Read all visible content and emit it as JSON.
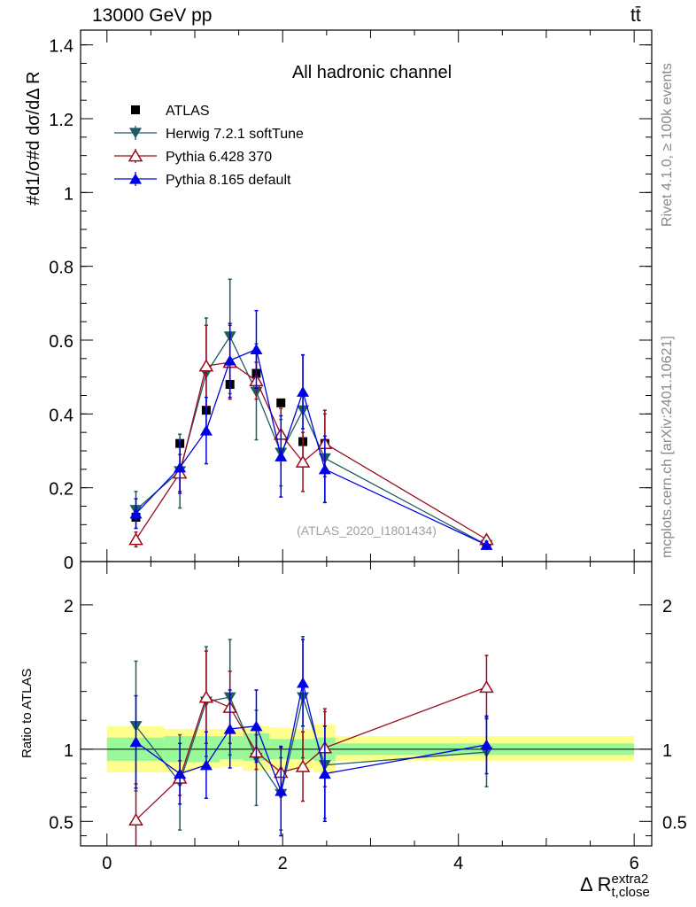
{
  "header": {
    "left": "13000 GeV pp",
    "right": "tt̄"
  },
  "side_text": {
    "rivet": "Rivet 4.1.0, ≥ 100k events",
    "mcplots": "mcplots.cern.ch [arXiv:2401.10621]"
  },
  "watermark": "(ATLAS_2020_I1801434)",
  "ratio_ylabel": "Ratio to ATLAS",
  "xlabel": {
    "main": "Δ R",
    "sup": "extra2",
    "sub": "t,close"
  },
  "colors": {
    "ATLAS": "#000000",
    "Herwig": "#1e5b63",
    "Pythia6": "#990b1e",
    "Pythia8": "#0000e6",
    "band_inner": "#99f899",
    "band_outer": "#fefe8c"
  },
  "chart_data": [
    {
      "type": "scatter",
      "title": "All hadronic channel",
      "ylabel": "#d1/σ#d dσ/dΔ R",
      "xlim": [
        -0.3,
        6.2
      ],
      "ylim": [
        0,
        1.44
      ],
      "yticks": [
        0,
        0.2,
        0.4,
        0.6,
        0.8,
        1,
        1.2,
        1.4
      ],
      "yticklabels": [
        "0",
        "0.2",
        "0.4",
        "0.6",
        "0.8",
        "1",
        "1.2",
        "1.4"
      ],
      "legend": [
        "ATLAS",
        "Herwig 7.2.1 softTune",
        "Pythia 6.428 370",
        "Pythia 8.165 default"
      ],
      "series": [
        {
          "name": "ATLAS",
          "marker": "square",
          "x": [
            0.33,
            0.83,
            1.13,
            1.4,
            1.7,
            1.98,
            2.23,
            2.48,
            4.32
          ],
          "y": [
            0.12,
            0.32,
            0.41,
            0.48,
            0.51,
            0.43,
            0.325,
            0.32,
            0.045
          ],
          "err": [
            0,
            0,
            0,
            0,
            0,
            0,
            0,
            0,
            0
          ]
        },
        {
          "name": "Herwig 7.2.1 softTune",
          "marker": "tri-down",
          "x": [
            0.33,
            0.83,
            1.13,
            1.4,
            1.7,
            1.98,
            2.23,
            2.48,
            4.32
          ],
          "y": [
            0.14,
            0.245,
            0.51,
            0.61,
            0.46,
            0.295,
            0.41,
            0.28,
            0.045
          ],
          "err": [
            0.05,
            0.1,
            0.15,
            0.155,
            0.13,
            0.09,
            0.15,
            0.12,
            0.01
          ]
        },
        {
          "name": "Pythia 6.428 370",
          "marker": "tri-up-open",
          "x": [
            0.33,
            0.83,
            1.13,
            1.4,
            1.7,
            1.98,
            2.23,
            2.48,
            4.32
          ],
          "y": [
            0.06,
            0.24,
            0.53,
            0.54,
            0.49,
            0.345,
            0.27,
            0.32,
            0.06
          ],
          "err": [
            0.02,
            0.05,
            0.11,
            0.1,
            0.05,
            0.07,
            0.08,
            0.09,
            0.01
          ]
        },
        {
          "name": "Pythia 8.165 default",
          "marker": "tri-up",
          "x": [
            0.33,
            0.83,
            1.13,
            1.4,
            1.7,
            1.98,
            2.23,
            2.48,
            4.32
          ],
          "y": [
            0.13,
            0.255,
            0.355,
            0.545,
            0.575,
            0.285,
            0.46,
            0.25,
            0.045
          ],
          "err": [
            0.04,
            0.07,
            0.09,
            0.1,
            0.105,
            0.11,
            0.1,
            0.09,
            0.01
          ]
        }
      ]
    },
    {
      "type": "scatter",
      "title": "Ratio to ATLAS",
      "ylabel": "Ratio to ATLAS",
      "xlim": [
        -0.3,
        6.2
      ],
      "ylim": [
        0.33,
        2.3
      ],
      "yticks": [
        0.5,
        1,
        2
      ],
      "yticklabels": [
        "0.5",
        "1",
        "2"
      ],
      "xticks": [
        0,
        2,
        4,
        6
      ],
      "xticklabels": [
        "0",
        "2",
        "4",
        "6"
      ],
      "band_edges": [
        0,
        0.65,
        1.0,
        1.28,
        1.55,
        1.85,
        2.1,
        2.35,
        2.6,
        6.0
      ],
      "band_inner": [
        [
          0.92,
          1.08
        ],
        [
          0.91,
          1.09
        ],
        [
          0.91,
          1.09
        ],
        [
          0.93,
          1.09
        ],
        [
          0.92,
          1.11
        ],
        [
          0.93,
          1.07
        ],
        [
          0.93,
          1.07
        ],
        [
          0.92,
          1.08
        ],
        [
          0.96,
          1.04
        ]
      ],
      "band_outer": [
        [
          0.84,
          1.16
        ],
        [
          0.84,
          1.14
        ],
        [
          0.87,
          1.14
        ],
        [
          0.88,
          1.14
        ],
        [
          0.85,
          1.16
        ],
        [
          0.85,
          1.15
        ],
        [
          0.86,
          1.14
        ],
        [
          0.84,
          1.17
        ],
        [
          0.92,
          1.09
        ]
      ],
      "series": [
        {
          "name": "Herwig 7.2.1 softTune",
          "marker": "tri-down",
          "x": [
            0.33,
            0.83,
            1.13,
            1.4,
            1.7,
            1.98,
            2.23,
            2.48,
            4.32
          ],
          "y": [
            1.16,
            0.77,
            1.33,
            1.36,
            0.94,
            0.69,
            1.36,
            0.89,
            0.98
          ],
          "err": [
            0.45,
            0.33,
            0.38,
            0.4,
            0.33,
            0.25,
            0.42,
            0.37,
            0.24
          ]
        },
        {
          "name": "Pythia 6.428 370",
          "marker": "tri-up-open",
          "x": [
            0.33,
            0.83,
            1.13,
            1.4,
            1.7,
            1.98,
            2.23,
            2.48,
            4.32
          ],
          "y": [
            0.51,
            0.8,
            1.36,
            1.29,
            0.98,
            0.84,
            0.88,
            1.01,
            1.43
          ],
          "err": [
            0.25,
            0.12,
            0.32,
            0.25,
            0.12,
            0.17,
            0.24,
            0.27,
            0.22
          ]
        },
        {
          "name": "Pythia 8.165 default",
          "marker": "tri-up",
          "x": [
            0.33,
            0.83,
            1.13,
            1.4,
            1.7,
            1.98,
            2.23,
            2.48,
            4.32
          ],
          "y": [
            1.05,
            0.83,
            0.89,
            1.14,
            1.16,
            0.71,
            1.46,
            0.83,
            1.03
          ],
          "err": [
            0.32,
            0.21,
            0.23,
            0.27,
            0.25,
            0.31,
            0.3,
            0.33,
            0.2
          ]
        }
      ]
    }
  ]
}
